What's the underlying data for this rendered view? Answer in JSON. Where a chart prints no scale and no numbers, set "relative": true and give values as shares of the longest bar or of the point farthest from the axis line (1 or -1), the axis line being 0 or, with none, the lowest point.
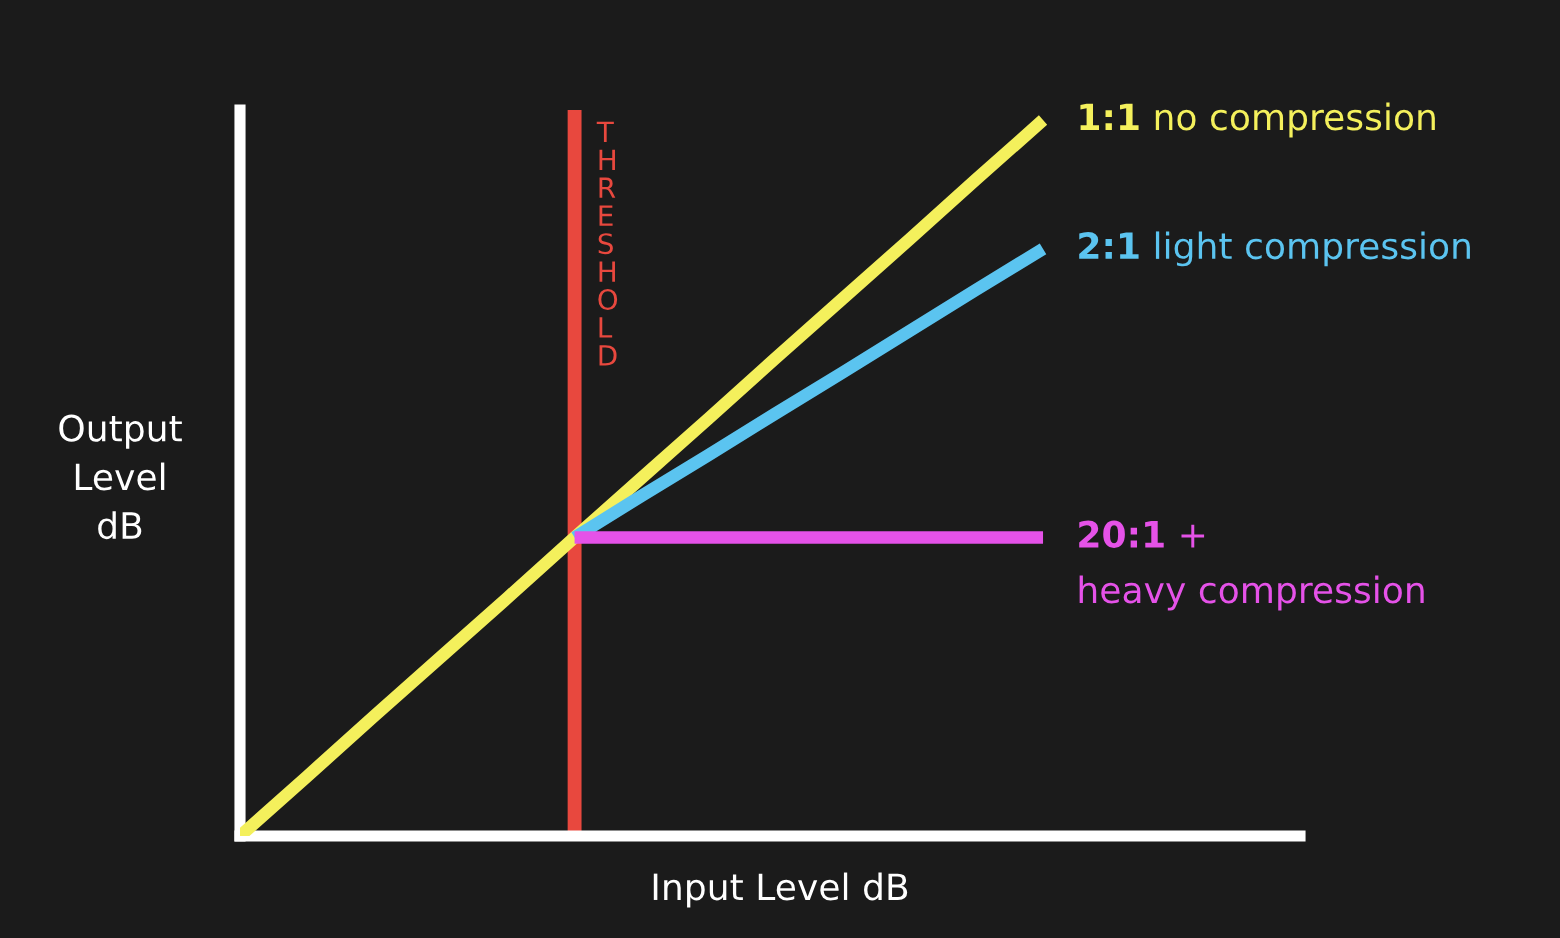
{
  "chart_data": {
    "type": "line",
    "relative": true,
    "xlabel": "Input Level dB",
    "ylabel": "Output\nLevel\ndB",
    "categories": [
      null,
      null,
      null,
      null,
      null,
      null,
      null,
      null,
      null,
      null,
      null,
      null,
      null
    ],
    "series": [
      {
        "name": "1:1 no compression",
        "color": "#f4f05c",
        "values": [
          0,
          0.083,
          0.167,
          0.25,
          0.333,
          0.417,
          0.5,
          0.583,
          0.667,
          0.75,
          0.833,
          0.917,
          1
        ]
      },
      {
        "name": "2:1 light compression",
        "color": "#5bc4f0",
        "values": [
          null,
          null,
          null,
          null,
          null,
          0.417,
          0.475,
          0.532,
          0.59,
          0.647,
          0.705,
          0.763,
          0.82
        ]
      },
      {
        "name": "20:1 +\nheavy compression",
        "color": "#e552e8",
        "values": [
          null,
          null,
          null,
          null,
          null,
          0.417,
          0.417,
          0.417,
          0.417,
          0.417,
          0.417,
          0.417,
          0.417
        ]
      }
    ],
    "annotations": [
      "THRESHOLD"
    ],
    "marker": "none",
    "line_style": "solid"
  }
}
